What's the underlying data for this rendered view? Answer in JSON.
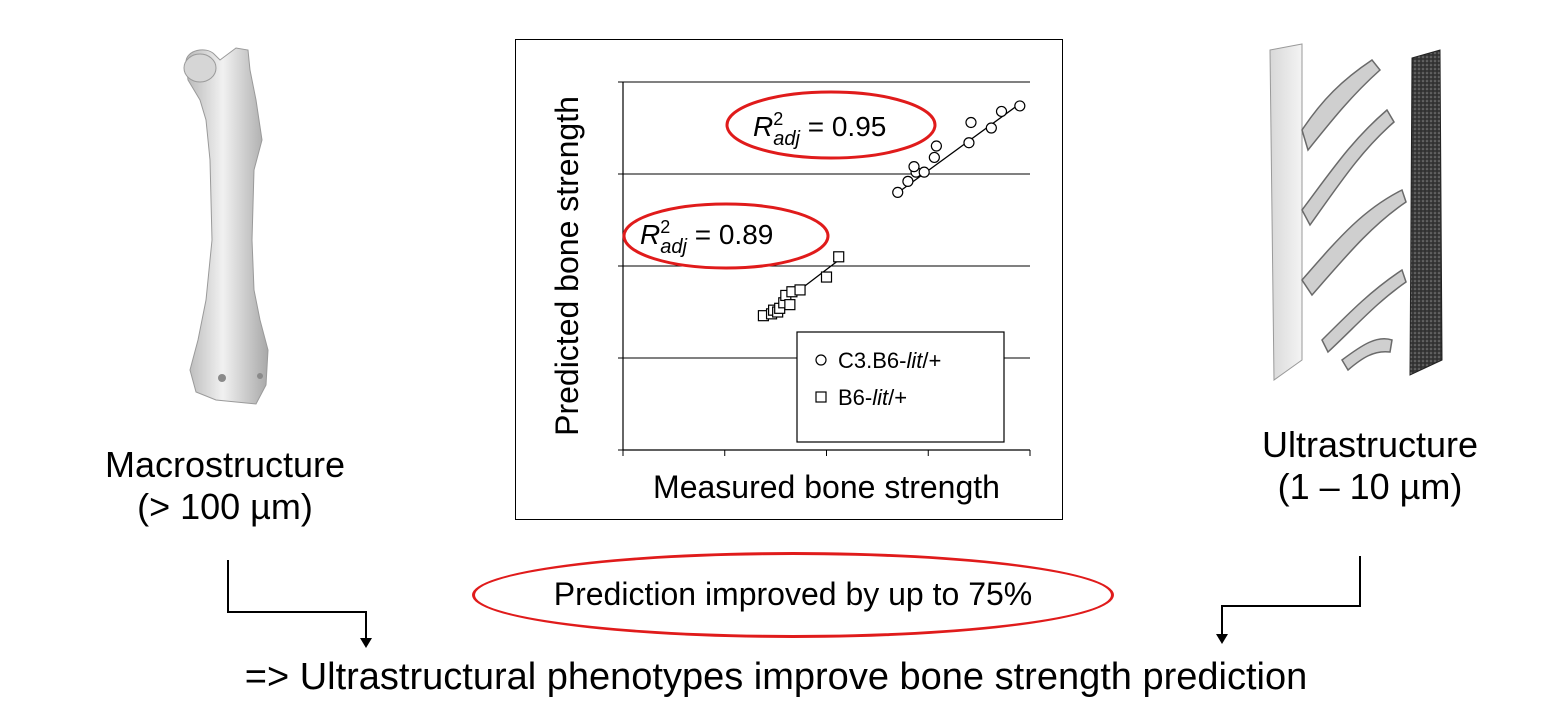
{
  "left_panel": {
    "image": "femur-bone-3d-render",
    "caption_line1": "Macrostructure",
    "caption_line2": "(> 100 µm)"
  },
  "right_panel": {
    "image": "cortical-bone-ultrastructure-render",
    "caption_line1": "Ultrastructure",
    "caption_line2": "(1 – 10 µm)"
  },
  "chart_data": {
    "type": "scatter",
    "title": "",
    "xlabel": "Measured bone strength",
    "ylabel": "Predicted bone strength",
    "xlim": [
      0,
      1
    ],
    "ylim": [
      0,
      1
    ],
    "x_ticks": 4,
    "y_gridlines": 4,
    "grid": "horizontal",
    "legend_position": "bottom-right",
    "series": [
      {
        "name": "C3.B6-lit/+",
        "name_prefix": "C3.B6-",
        "name_italic": "lit",
        "name_suffix": "/+",
        "marker": "circle",
        "points": [
          [
            0.675,
            0.7
          ],
          [
            0.7,
            0.73
          ],
          [
            0.72,
            0.755
          ],
          [
            0.715,
            0.77
          ],
          [
            0.74,
            0.755
          ],
          [
            0.765,
            0.795
          ],
          [
            0.77,
            0.826
          ],
          [
            0.85,
            0.835
          ],
          [
            0.855,
            0.89
          ],
          [
            0.905,
            0.875
          ],
          [
            0.93,
            0.92
          ],
          [
            0.975,
            0.935
          ]
        ],
        "fit": [
          [
            0.67,
            0.695
          ],
          [
            0.98,
            0.945
          ]
        ],
        "r2_label_prefix": "R",
        "r2_sup": "2",
        "r2_sub": "adj",
        "r2_value": " = 0.95",
        "r2_color": "#e01b1b"
      },
      {
        "name": "B6-lit/+",
        "name_prefix": "B6-",
        "name_italic": "lit",
        "name_suffix": "/+",
        "marker": "square",
        "points": [
          [
            0.345,
            0.365
          ],
          [
            0.365,
            0.37
          ],
          [
            0.37,
            0.38
          ],
          [
            0.38,
            0.375
          ],
          [
            0.385,
            0.385
          ],
          [
            0.395,
            0.4
          ],
          [
            0.4,
            0.42
          ],
          [
            0.41,
            0.395
          ],
          [
            0.415,
            0.43
          ],
          [
            0.435,
            0.435
          ],
          [
            0.5,
            0.47
          ],
          [
            0.53,
            0.525
          ]
        ],
        "fit": [
          [
            0.345,
            0.36
          ],
          [
            0.535,
            0.52
          ]
        ],
        "r2_label_prefix": "R",
        "r2_sup": "2",
        "r2_sub": "adj",
        "r2_value": " = 0.89",
        "r2_color": "#e01b1b"
      }
    ]
  },
  "callout": {
    "text": "Prediction improved by up to 75%",
    "border_color": "#e01b1b"
  },
  "conclusion": {
    "text": "=> Ultrastructural phenotypes improve bone strength prediction"
  }
}
